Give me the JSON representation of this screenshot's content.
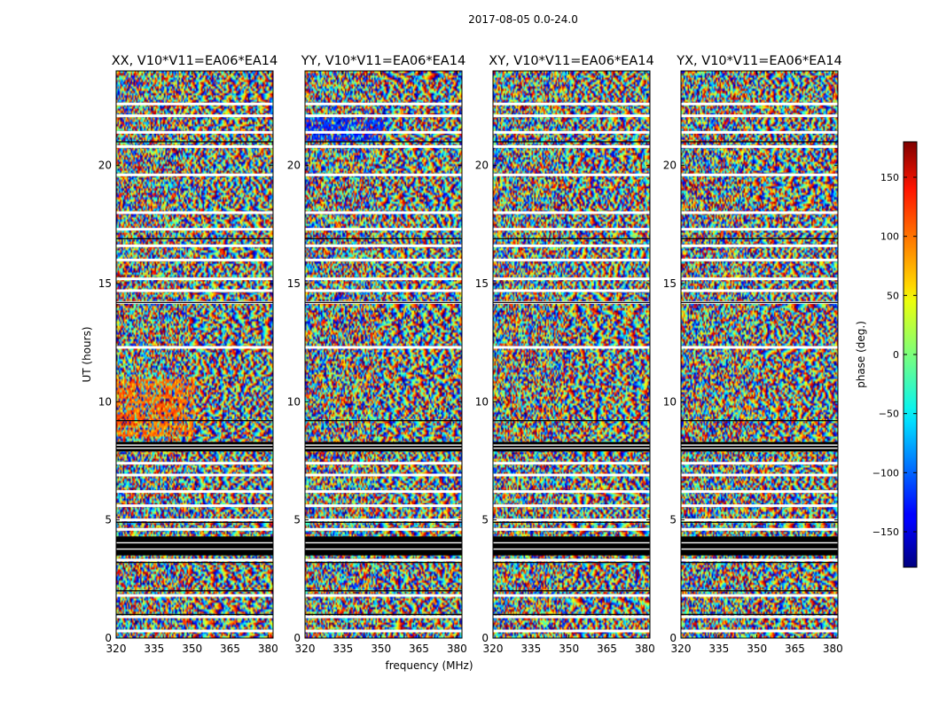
{
  "chart_data": {
    "type": "heatmap",
    "suptitle": "2017-08-05 0.0-24.0",
    "xlabel": "frequency (MHz)",
    "ylabel": "UT (hours)",
    "xlim": [
      320,
      382
    ],
    "ylim": [
      0,
      24
    ],
    "x_ticks": [
      320,
      335,
      350,
      365,
      380
    ],
    "y_ticks": [
      0,
      5,
      10,
      15,
      20
    ],
    "panels": [
      {
        "title": "XX, V10*V11=EA06*EA14",
        "pol": "XX"
      },
      {
        "title": "YY, V10*V11=EA06*EA14",
        "pol": "YY"
      },
      {
        "title": "XY, V10*V11=EA06*EA14",
        "pol": "XY"
      },
      {
        "title": "YX, V10*V11=EA06*EA14",
        "pol": "YX"
      }
    ],
    "colorbar": {
      "label": "phase (deg.)",
      "range": [
        -180,
        180
      ],
      "ticks": [
        150,
        100,
        50,
        0,
        -50,
        -100,
        -150
      ],
      "colormap": "jet"
    },
    "flagged_blocks_ut": [
      [
        3.5,
        4.3
      ],
      [
        7.9,
        8.3
      ]
    ],
    "flagged_lines_ut": [
      0.3,
      0.9,
      1.8,
      3.3,
      4.6,
      5.0,
      5.6,
      6.2,
      6.9,
      7.4,
      12.3,
      14.2,
      14.7,
      15.2,
      16.0,
      16.6,
      17.3,
      18.0,
      19.6,
      20.8,
      21.4,
      22.1,
      22.6
    ],
    "black_lines_ut": [
      1.0,
      2.0,
      3.2,
      4.9,
      9.2,
      14.2,
      16.9,
      21.0
    ]
  }
}
